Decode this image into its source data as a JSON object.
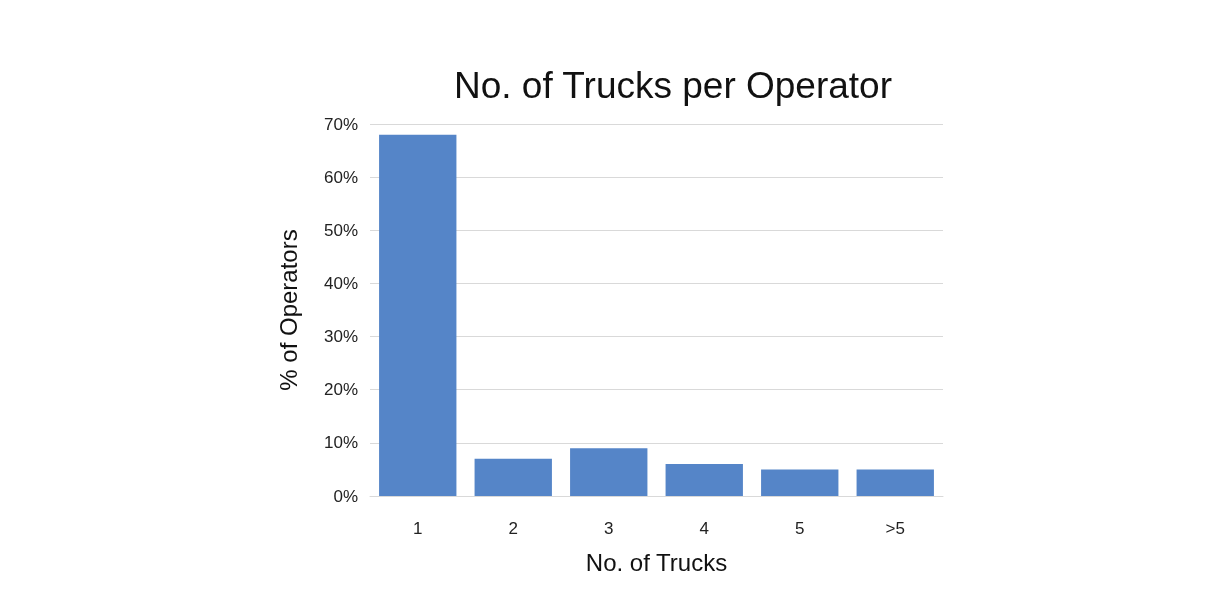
{
  "chart_data": {
    "type": "bar",
    "title": "No. of Trucks per Operator",
    "xlabel": "No. of Trucks",
    "ylabel": "% of Operators",
    "categories": [
      "1",
      "2",
      "3",
      "4",
      "5",
      ">5"
    ],
    "values": [
      68,
      7,
      9,
      6,
      5,
      5
    ],
    "color": "#5585c8",
    "ylim": [
      0,
      70
    ],
    "yticks": [
      {
        "value": 0,
        "label": "0%"
      },
      {
        "value": 10,
        "label": "10%"
      },
      {
        "value": 20,
        "label": "20%"
      },
      {
        "value": 30,
        "label": "30%"
      },
      {
        "value": 40,
        "label": "40%"
      },
      {
        "value": 50,
        "label": "50%"
      },
      {
        "value": 60,
        "label": "60%"
      },
      {
        "value": 70,
        "label": "70%"
      }
    ],
    "grid": "y"
  }
}
